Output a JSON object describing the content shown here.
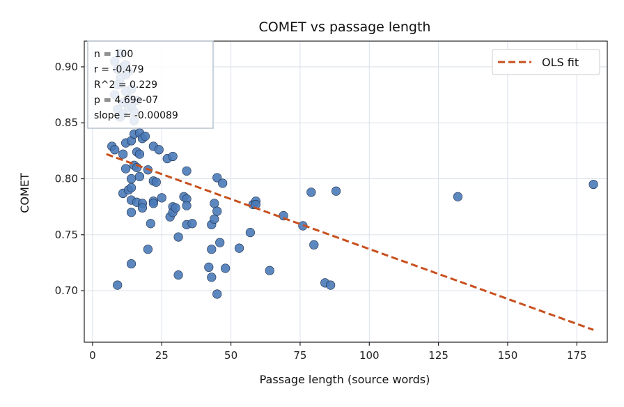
{
  "chart_data": {
    "type": "scatter",
    "title": "COMET vs passage length",
    "xlabel": "Passage length (source words)",
    "ylabel": "COMET",
    "xlim": [
      -3,
      186
    ],
    "ylim": [
      0.654,
      0.923
    ],
    "xticks": [
      0,
      25,
      50,
      75,
      100,
      125,
      150,
      175
    ],
    "xtick_labels": [
      "0",
      "25",
      "50",
      "75",
      "100",
      "125",
      "150",
      "175"
    ],
    "yticks": [
      0.7,
      0.75,
      0.8,
      0.85,
      0.9
    ],
    "ytick_labels": [
      "0.70",
      "0.75",
      "0.80",
      "0.85",
      "0.90"
    ],
    "grid": true,
    "legend": {
      "position": "top-right",
      "entries": [
        "OLS fit"
      ]
    },
    "stats_box": [
      "n = 100",
      "r = -0.479",
      "R^2 = 0.229",
      "p = 4.69e-07",
      "slope = -0.00089"
    ],
    "fit_line": {
      "x": [
        5,
        181
      ],
      "y": [
        0.822,
        0.665
      ]
    },
    "points": [
      [
        7,
        0.829
      ],
      [
        8,
        0.826
      ],
      [
        9,
        0.705
      ],
      [
        11,
        0.822
      ],
      [
        11,
        0.787
      ],
      [
        12,
        0.809
      ],
      [
        12,
        0.832
      ],
      [
        13,
        0.79
      ],
      [
        14,
        0.834
      ],
      [
        14,
        0.8
      ],
      [
        14,
        0.792
      ],
      [
        14,
        0.781
      ],
      [
        14,
        0.77
      ],
      [
        14,
        0.724
      ],
      [
        15,
        0.84
      ],
      [
        15,
        0.812
      ],
      [
        16,
        0.824
      ],
      [
        16,
        0.81
      ],
      [
        16,
        0.779
      ],
      [
        17,
        0.841
      ],
      [
        17,
        0.822
      ],
      [
        17,
        0.802
      ],
      [
        18,
        0.836
      ],
      [
        18,
        0.778
      ],
      [
        18,
        0.774
      ],
      [
        19,
        0.838
      ],
      [
        20,
        0.808
      ],
      [
        20,
        0.737
      ],
      [
        21,
        0.76
      ],
      [
        22,
        0.829
      ],
      [
        22,
        0.798
      ],
      [
        22,
        0.78
      ],
      [
        22,
        0.778
      ],
      [
        23,
        0.797
      ],
      [
        24,
        0.826
      ],
      [
        25,
        0.783
      ],
      [
        27,
        0.818
      ],
      [
        28,
        0.766
      ],
      [
        29,
        0.82
      ],
      [
        29,
        0.775
      ],
      [
        29,
        0.77
      ],
      [
        30,
        0.774
      ],
      [
        31,
        0.748
      ],
      [
        31,
        0.714
      ],
      [
        33,
        0.784
      ],
      [
        34,
        0.807
      ],
      [
        34,
        0.782
      ],
      [
        34,
        0.776
      ],
      [
        34,
        0.759
      ],
      [
        36,
        0.76
      ],
      [
        42,
        0.721
      ],
      [
        43,
        0.759
      ],
      [
        43,
        0.737
      ],
      [
        43,
        0.712
      ],
      [
        44,
        0.778
      ],
      [
        44,
        0.764
      ],
      [
        45,
        0.801
      ],
      [
        45,
        0.771
      ],
      [
        45,
        0.697
      ],
      [
        46,
        0.743
      ],
      [
        47,
        0.796
      ],
      [
        48,
        0.72
      ],
      [
        53,
        0.738
      ],
      [
        57,
        0.752
      ],
      [
        58,
        0.777
      ],
      [
        59,
        0.78
      ],
      [
        59,
        0.777
      ],
      [
        64,
        0.718
      ],
      [
        69,
        0.767
      ],
      [
        76,
        0.758
      ],
      [
        79,
        0.788
      ],
      [
        80,
        0.741
      ],
      [
        84,
        0.707
      ],
      [
        86,
        0.705
      ],
      [
        88,
        0.789
      ],
      [
        132,
        0.784
      ],
      [
        181,
        0.795
      ],
      [
        8,
        0.905
      ],
      [
        9,
        0.898
      ],
      [
        10,
        0.912
      ],
      [
        10,
        0.885
      ],
      [
        11,
        0.9
      ],
      [
        8,
        0.875
      ],
      [
        12,
        0.893
      ],
      [
        13,
        0.872
      ],
      [
        9,
        0.862
      ],
      [
        14,
        0.88
      ],
      [
        11,
        0.868
      ],
      [
        15,
        0.86
      ],
      [
        10,
        0.855
      ],
      [
        12,
        0.878
      ],
      [
        13,
        0.864
      ],
      [
        16,
        0.87
      ],
      [
        10,
        0.89
      ],
      [
        11,
        0.858
      ],
      [
        14,
        0.866
      ],
      [
        12,
        0.902
      ],
      [
        15,
        0.852
      ],
      [
        9,
        0.884
      ],
      [
        13,
        0.896
      ]
    ],
    "colors": {
      "point": "#4a7ab8",
      "point_edge": "#1f2f4a",
      "fit": "#c8501e",
      "grid": "#d9e0ea"
    }
  }
}
